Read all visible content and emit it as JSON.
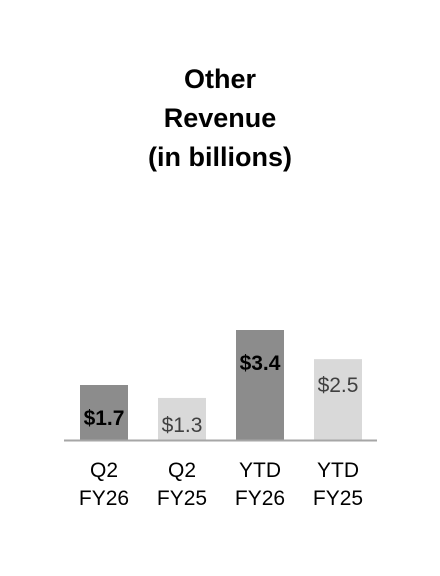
{
  "chart_data": {
    "type": "bar",
    "title_lines": [
      "Other",
      "Revenue",
      "(in billions)"
    ],
    "categories": [
      [
        "Q2",
        "FY26"
      ],
      [
        "Q2",
        "FY25"
      ],
      [
        "YTD",
        "FY26"
      ],
      [
        "YTD",
        "FY25"
      ]
    ],
    "values": [
      1.7,
      1.3,
      3.4,
      2.5
    ],
    "value_labels": [
      "$1.7",
      "$1.3",
      "$3.4",
      "$2.5"
    ],
    "bar_colors": [
      "#8c8c8c",
      "#d9d9d9",
      "#8c8c8c",
      "#d9d9d9"
    ],
    "label_bold": [
      true,
      false,
      true,
      false
    ],
    "grid": false,
    "legend": "none"
  }
}
